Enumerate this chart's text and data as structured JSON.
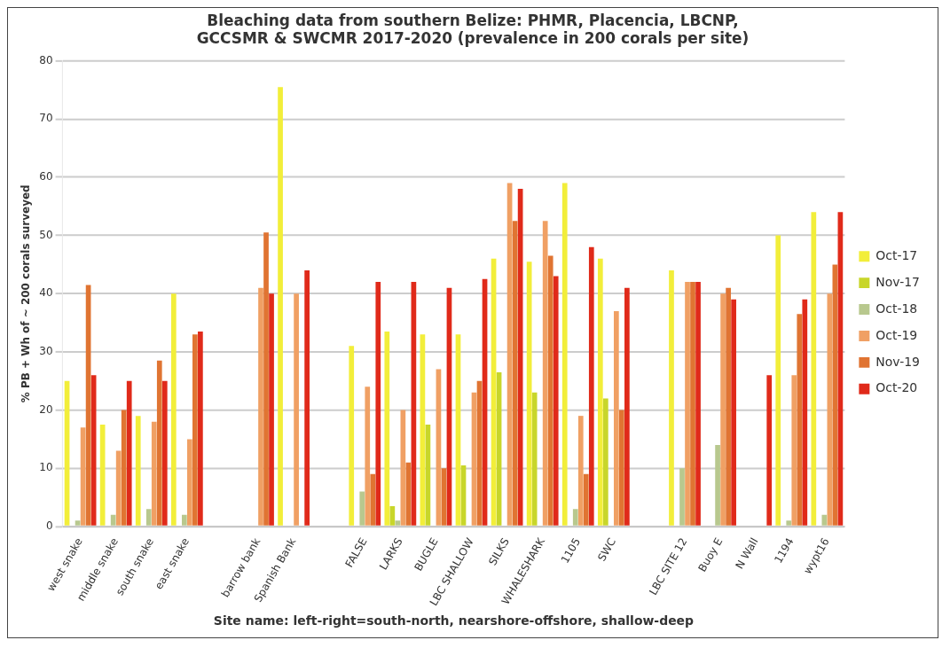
{
  "chart_data": {
    "type": "bar",
    "title": "Bleaching data from southern Belize: PHMR, Placencia, LBCNP, GCCSMR & SWCMR 2017-2020 (prevalence in 200 corals per site)",
    "xlabel": "Site name: left-right=south-north, nearshore-offshore, shallow-deep",
    "ylabel": "% PB + Wh of ~ 200 corals surveyed",
    "categories": [
      "west snake",
      "middle snake",
      "south snake",
      "east snake",
      null,
      "barrow bank",
      "Spanish Bank",
      null,
      "FALSE",
      "LARKS",
      "BUGLE",
      "LBC SHALLOW",
      "SILKS",
      "WHALESHARK",
      "1105",
      "SWC",
      null,
      "LBC SITE 12",
      "Buoy E",
      "N Wall",
      "1194",
      "wypt16"
    ],
    "series": [
      {
        "name": "Oct-17",
        "color": "#f2ee3a",
        "values": [
          25,
          17.5,
          19,
          40,
          null,
          null,
          75.5,
          null,
          31,
          33.5,
          33,
          33,
          46,
          45.5,
          59,
          46,
          null,
          44,
          null,
          null,
          50,
          54
        ]
      },
      {
        "name": "Nov-17",
        "color": "#c8d62a",
        "values": [
          null,
          null,
          null,
          null,
          null,
          null,
          null,
          null,
          null,
          3.5,
          17.5,
          10.5,
          26.5,
          23,
          null,
          22,
          null,
          null,
          null,
          null,
          null,
          null
        ]
      },
      {
        "name": "Oct-18",
        "color": "#b8c88e",
        "values": [
          1,
          2,
          3,
          2,
          null,
          null,
          null,
          null,
          6,
          1,
          null,
          null,
          null,
          null,
          3,
          null,
          null,
          10,
          14,
          null,
          1,
          2
        ]
      },
      {
        "name": "Oct-19",
        "color": "#f0a064",
        "values": [
          17,
          13,
          18,
          15,
          null,
          41,
          40,
          null,
          24,
          20,
          27,
          23,
          59,
          52.5,
          19,
          37,
          null,
          42,
          40,
          null,
          26,
          40
        ]
      },
      {
        "name": "Nov-19",
        "color": "#e07432",
        "values": [
          41.5,
          20,
          28.5,
          33,
          null,
          50.5,
          null,
          null,
          9,
          11,
          10,
          25,
          52.5,
          46.5,
          9,
          20,
          null,
          42,
          41,
          null,
          36.5,
          45
        ]
      },
      {
        "name": "Oct-20",
        "color": "#e02a1a",
        "values": [
          26,
          25,
          25,
          33.5,
          null,
          40,
          44,
          null,
          42,
          42,
          41,
          42.5,
          58,
          43,
          48,
          41,
          null,
          42,
          39,
          26,
          39,
          54
        ]
      }
    ],
    "ylim": [
      0,
      80
    ],
    "yticks": [
      0,
      10,
      20,
      30,
      40,
      50,
      60,
      70,
      80
    ],
    "grid": "y",
    "legend": "right"
  }
}
